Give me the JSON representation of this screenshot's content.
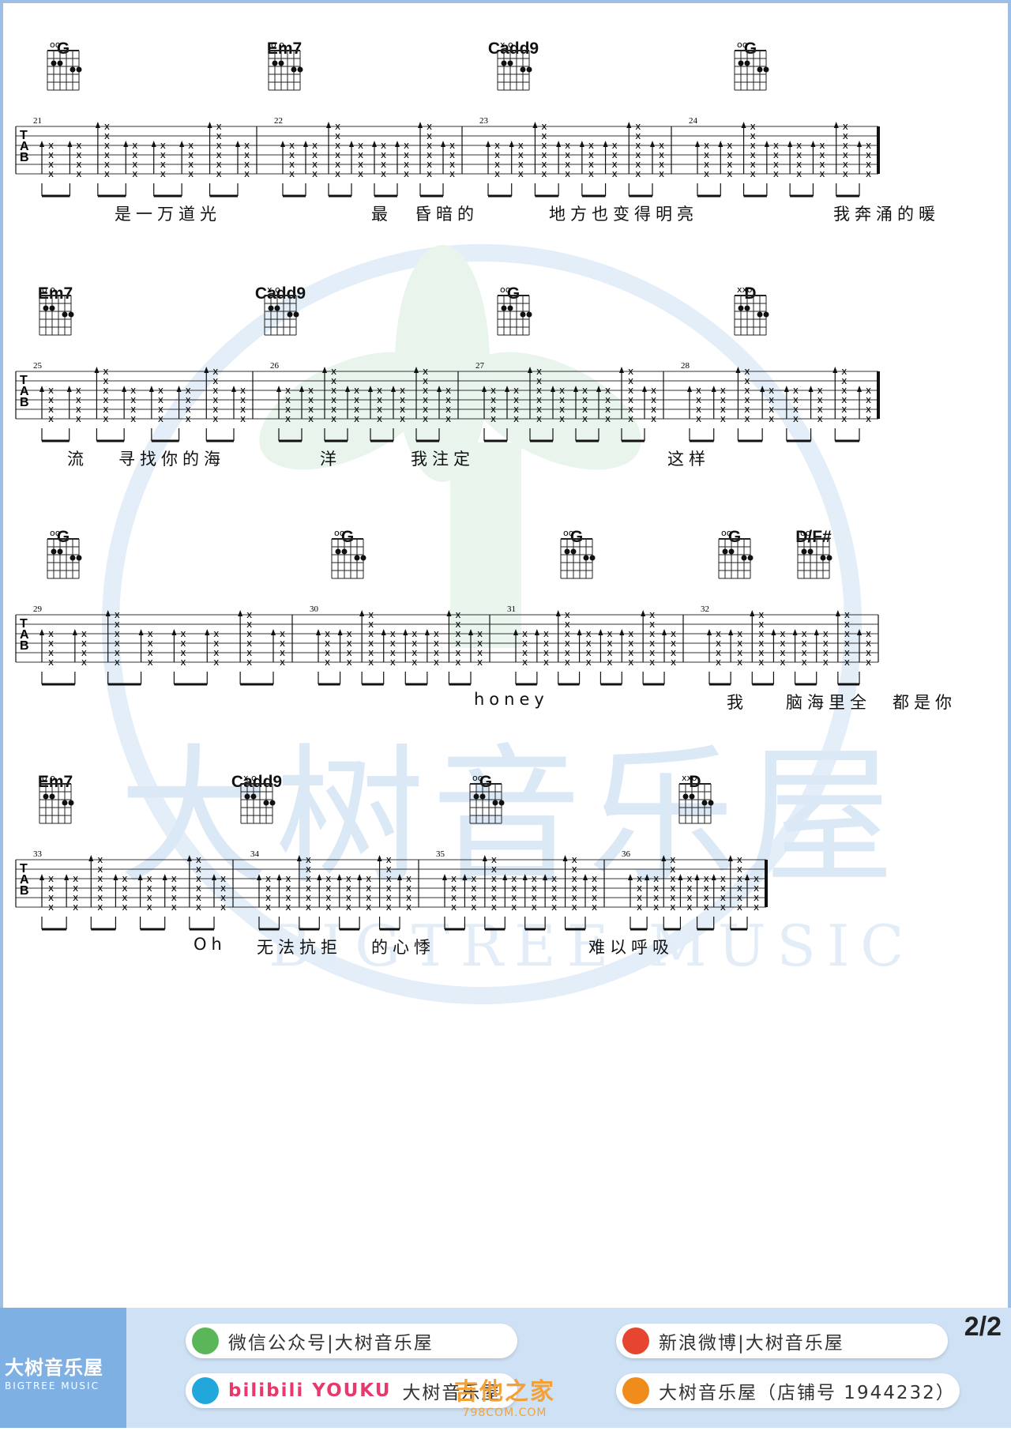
{
  "page_number": "2/2",
  "watermark": {
    "cn": "大树音乐屋",
    "en": "BIGTREE MUSIC"
  },
  "systems": [
    {
      "measures": [
        "21",
        "22",
        "23",
        "24"
      ],
      "chords": [
        {
          "name": "G",
          "fingers": [
            [
              2,
              1
            ],
            [
              1,
              0
            ],
            [
              0,
              0
            ]
          ],
          "open": "oo"
        },
        {
          "name": "Em7",
          "fingers": [
            [
              1,
              1
            ],
            [
              2,
              1
            ],
            [
              4,
              2
            ],
            [
              5,
              2
            ]
          ],
          "open": "o o"
        },
        {
          "name": "Cadd9",
          "fingers": [
            [
              1,
              2
            ],
            [
              2,
              1
            ],
            [
              4,
              2
            ],
            [
              5,
              2
            ]
          ],
          "open": "x o"
        },
        {
          "name": "G",
          "fingers": [
            [
              2,
              1
            ],
            [
              1,
              0
            ],
            [
              0,
              0
            ]
          ],
          "open": "oo"
        }
      ],
      "lyrics": [
        "是一万道光",
        "最",
        "昏暗的",
        "地方也变得明亮",
        "我奔涌的暖"
      ]
    },
    {
      "measures": [
        "25",
        "26",
        "27",
        "28"
      ],
      "chords": [
        {
          "name": "Em7",
          "open": "o o"
        },
        {
          "name": "Cadd9",
          "open": "x o"
        },
        {
          "name": "G",
          "open": "oo"
        },
        {
          "name": "D",
          "open": "xxo"
        }
      ],
      "lyrics": [
        "流",
        "寻找你的海",
        "洋",
        "我注定",
        "这样"
      ]
    },
    {
      "measures": [
        "29",
        "30",
        "31",
        "32"
      ],
      "chords": [
        {
          "name": "G",
          "open": "oo"
        },
        {
          "name": "G",
          "open": "oo"
        },
        {
          "name": "G",
          "open": "oo"
        },
        {
          "name": "G",
          "open": "oo"
        },
        {
          "name": "D/F#",
          "open": "oo"
        }
      ],
      "lyrics": [
        "honey",
        "我",
        "脑海里全",
        "都是你"
      ]
    },
    {
      "measures": [
        "33",
        "34",
        "35",
        "36"
      ],
      "chords": [
        {
          "name": "Em7",
          "open": "o o"
        },
        {
          "name": "Cadd9",
          "open": "x o"
        },
        {
          "name": "G",
          "open": "oo"
        },
        {
          "name": "D",
          "open": "xxo"
        }
      ],
      "lyrics": [
        "Oh",
        "无法抗拒",
        "的心悸",
        "难以呼吸"
      ]
    }
  ],
  "footer": {
    "brand": "大树音乐屋",
    "brand_en": "BIGTREE MUSIC",
    "wechat": "微信公众号|大树音乐屋",
    "weibo": "新浪微博|大树音乐屋",
    "video": "bilibili YOUKU",
    "video_name": "大树音乐屋",
    "taobao": "大树音乐屋（店铺号 1944232）",
    "site_cn": "吉他之家",
    "site_url": "798COM.COM"
  },
  "colors": {
    "frame": "#9dbfe6",
    "footer_bg": "#cfe2f5",
    "footer_left": "#7fb0e3",
    "wechat": "#5bb65a",
    "weibo": "#e6452f",
    "bilibili": "#22a7dd",
    "taobao": "#f08c1c"
  }
}
